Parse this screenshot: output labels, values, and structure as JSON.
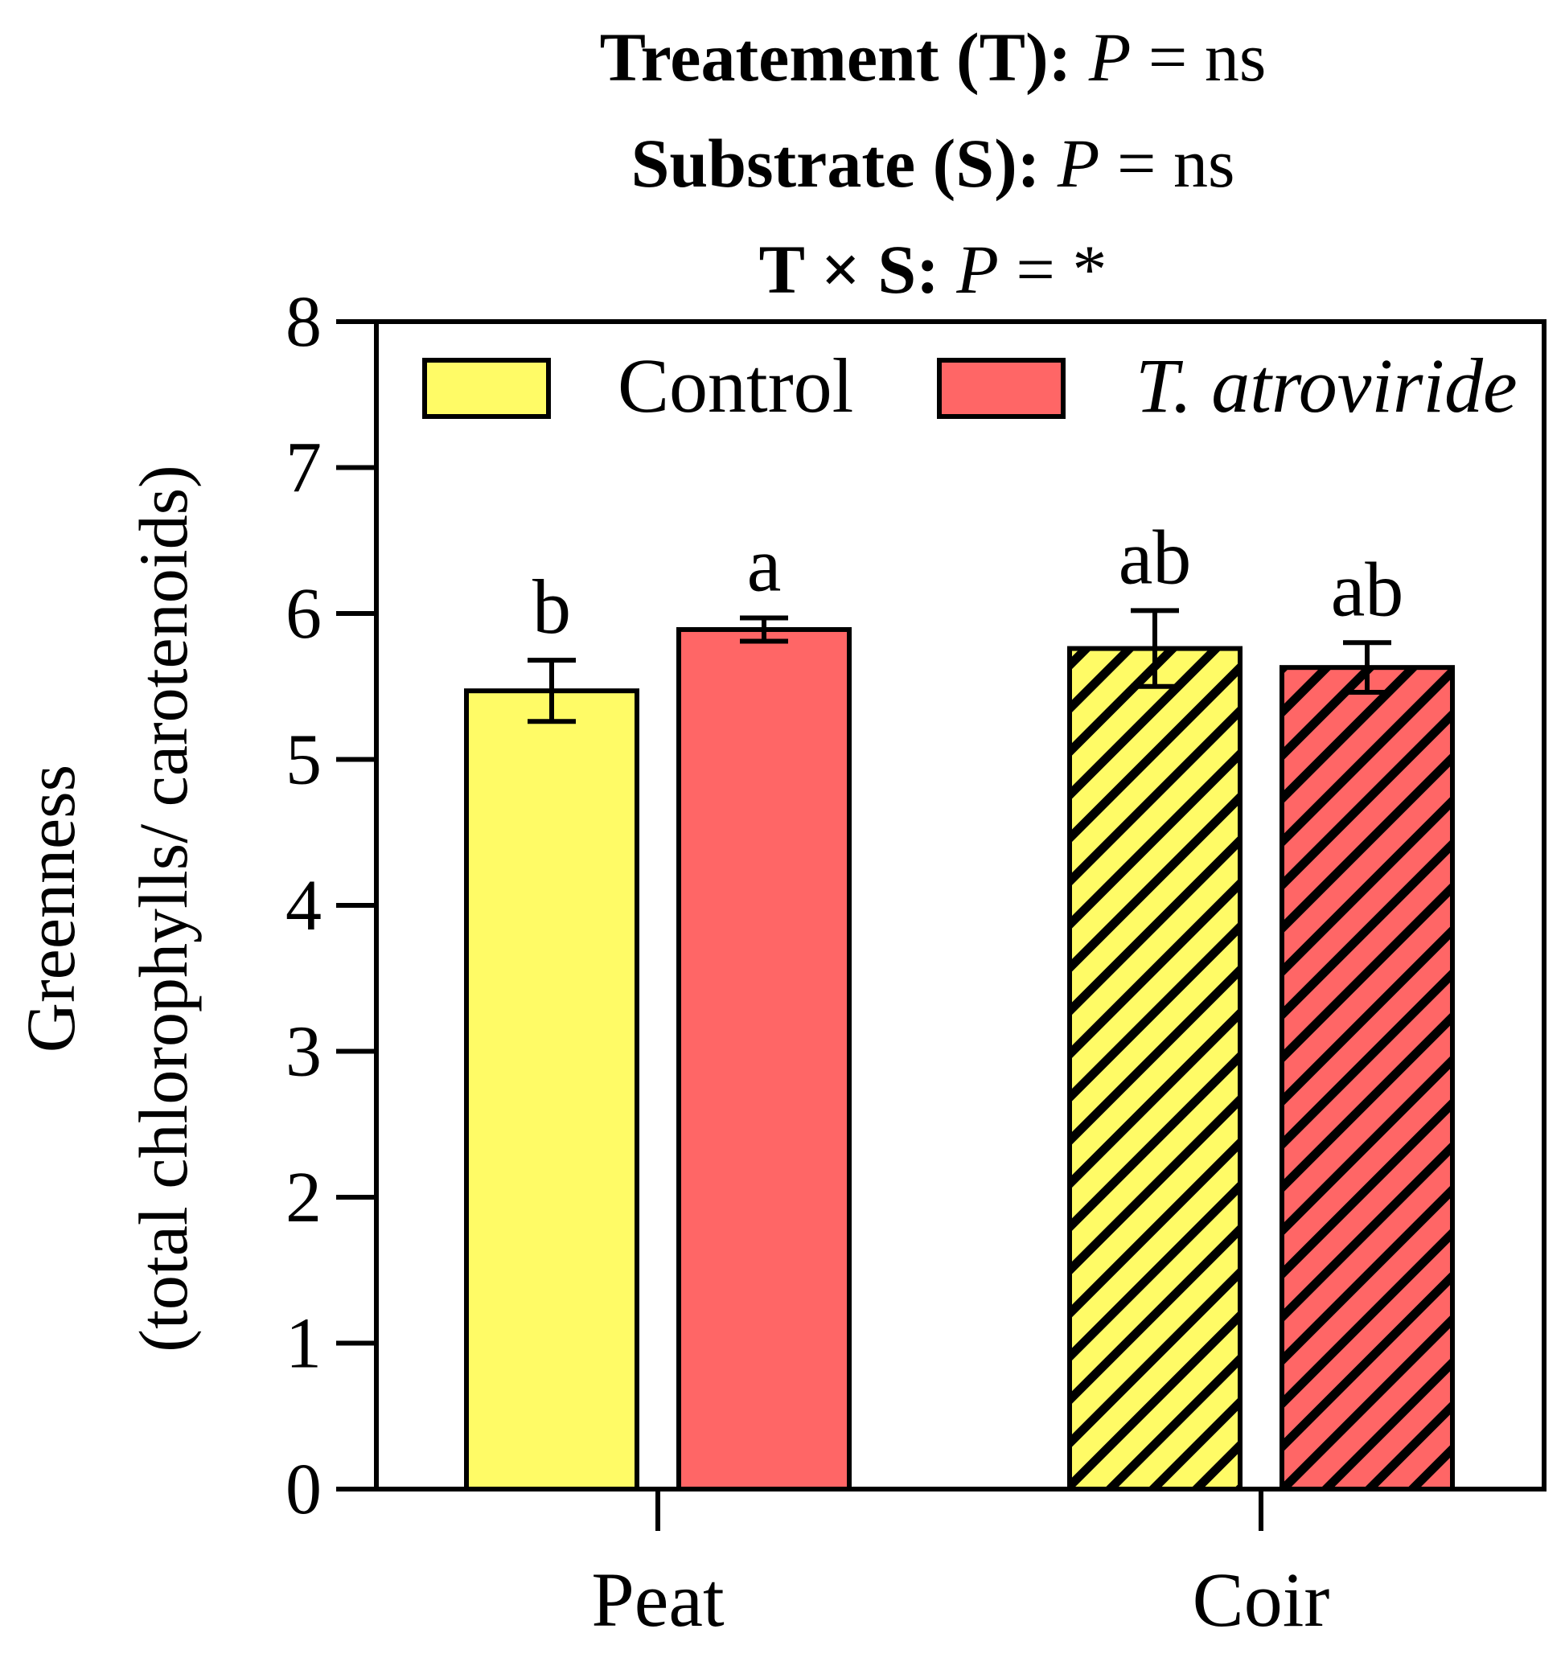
{
  "chart_data": {
    "type": "bar",
    "title_lines": [
      {
        "bold": "Treatement (T):",
        "p": "P",
        "rest": " = ns"
      },
      {
        "bold": "Substrate (S):",
        "p": "P",
        "rest": " = ns"
      },
      {
        "bold": "T × S:",
        "p": "P",
        "rest": " = *"
      }
    ],
    "ylabel_line1": "Greenness",
    "ylabel_line2": "(total chlorophylls/ carotenoids)",
    "xlabel": "",
    "categories": [
      "Peat",
      "Coir"
    ],
    "ylim": [
      0,
      8
    ],
    "yticks": [
      0,
      1,
      2,
      3,
      4,
      5,
      6,
      7,
      8
    ],
    "series": [
      {
        "name": "Control",
        "italic": false,
        "color": "#FFFB66",
        "values": [
          5.47,
          5.76
        ],
        "errors": [
          0.21,
          0.26
        ],
        "letters": [
          "b",
          "ab"
        ],
        "hatched": [
          false,
          true
        ]
      },
      {
        "name": "T. atroviride",
        "italic": true,
        "color": "#FF6666",
        "values": [
          5.89,
          5.63
        ],
        "errors": [
          0.08,
          0.17
        ],
        "letters": [
          "a",
          "ab"
        ],
        "hatched": [
          false,
          true
        ]
      }
    ],
    "legend_position": "top"
  }
}
